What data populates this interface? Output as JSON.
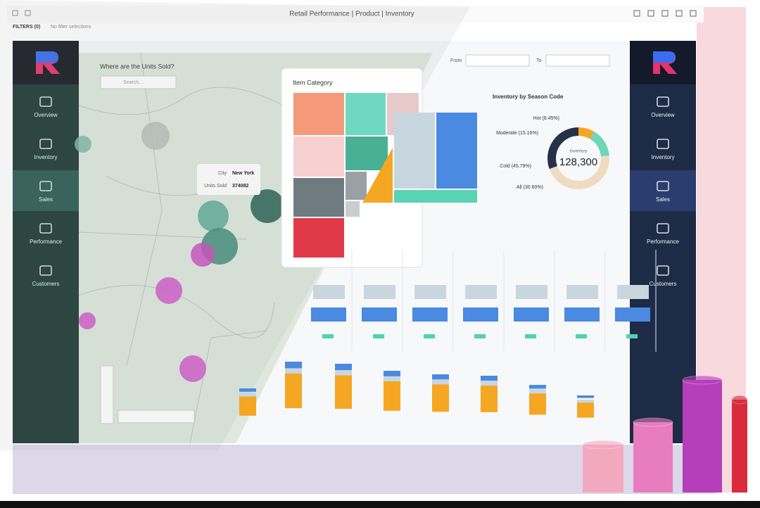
{
  "header": {
    "title": "Retail Performance | Product | Inventory",
    "filters": "FILTERS (0)",
    "filter_note": "No filter selections"
  },
  "sidebar": {
    "items": [
      "Overview",
      "Inventory",
      "Sales",
      "Performance",
      "Customers"
    ]
  },
  "map": {
    "title": "Where are the Units Sold?",
    "search": "Search...",
    "tooltip": {
      "city_label": "City",
      "city": "New York",
      "units_label": "Units Sold",
      "units": "374082"
    }
  },
  "treemap": {
    "title": "Item Category"
  },
  "dates": {
    "from": "From",
    "to": "To"
  },
  "donut": {
    "title": "Inventory by Season Code",
    "center_label": "Inventory",
    "center_value": "128,300",
    "segments": [
      {
        "label": "Hot (8.45%)",
        "value": 8.45,
        "color": "#f5a623"
      },
      {
        "label": "Moderate (15.16%)",
        "value": 15.16,
        "color": "#6fd6b8"
      },
      {
        "label": "Cold (45.79%)",
        "value": 45.79,
        "color": "#efdcc0"
      },
      {
        "label": "All (30.60%)",
        "value": 30.6,
        "color": "#273249"
      }
    ]
  }
}
